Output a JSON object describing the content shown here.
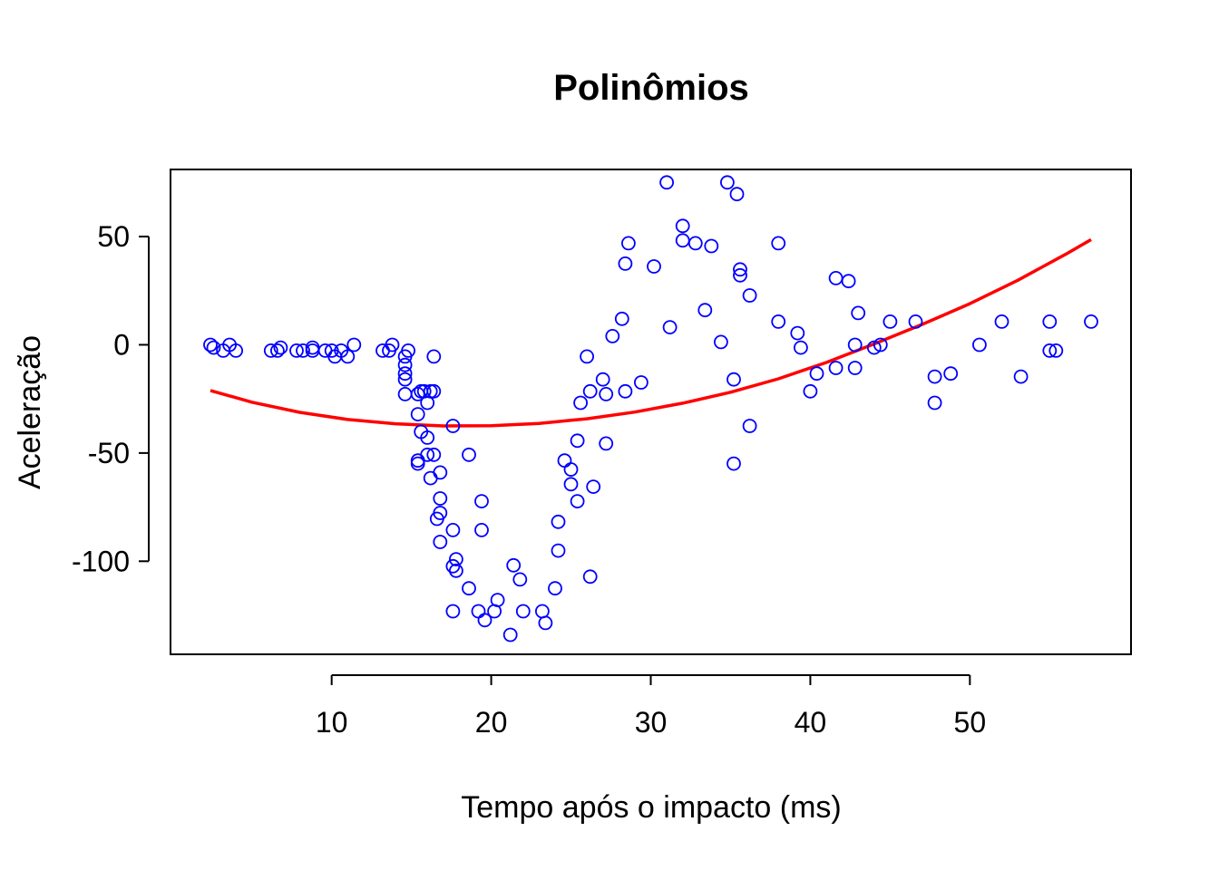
{
  "chart_data": {
    "type": "scatter",
    "title": "Polinômios",
    "xlabel": "Tempo após o impacto (ms)",
    "ylabel": "Aceleração",
    "xlim": [
      -0.1,
      60.1
    ],
    "ylim": [
      -143,
      81
    ],
    "x_ticks": [
      10,
      20,
      30,
      40,
      50
    ],
    "y_ticks": [
      -100,
      -50,
      0,
      50
    ],
    "grid": false,
    "legend": "none",
    "colors": {
      "points": "#0000ff",
      "fit": "#ff0000",
      "frame": "#000000"
    },
    "series": [
      {
        "type": "scatter",
        "marker": "open-circle",
        "x": [
          2.4,
          2.6,
          3.2,
          3.6,
          4.0,
          6.2,
          6.6,
          6.8,
          7.8,
          8.2,
          8.8,
          8.8,
          9.6,
          10.0,
          10.2,
          10.6,
          11.0,
          11.4,
          13.2,
          13.6,
          13.8,
          14.6,
          14.6,
          14.6,
          14.6,
          14.6,
          14.8,
          15.4,
          15.4,
          15.4,
          15.4,
          15.6,
          15.6,
          15.8,
          16.0,
          16.0,
          16.0,
          16.2,
          16.2,
          16.4,
          16.4,
          16.4,
          16.6,
          16.8,
          16.8,
          16.8,
          16.8,
          17.6,
          17.6,
          17.6,
          17.6,
          17.8,
          17.8,
          18.6,
          18.6,
          19.2,
          19.4,
          19.4,
          19.6,
          20.2,
          20.4,
          21.2,
          21.4,
          21.8,
          22.0,
          23.2,
          23.4,
          24.0,
          24.2,
          24.2,
          24.6,
          25.0,
          25.0,
          25.4,
          25.4,
          25.6,
          26.0,
          26.2,
          26.2,
          26.4,
          27.0,
          27.2,
          27.2,
          27.6,
          28.2,
          28.4,
          28.4,
          28.6,
          29.4,
          30.2,
          31.0,
          31.2,
          32.0,
          32.0,
          32.8,
          33.4,
          33.8,
          34.4,
          34.8,
          35.2,
          35.2,
          35.4,
          35.6,
          35.6,
          36.2,
          36.2,
          38.0,
          38.0,
          39.2,
          39.4,
          40.0,
          40.4,
          41.6,
          41.6,
          42.4,
          42.8,
          42.8,
          43.0,
          44.0,
          44.4,
          45.0,
          46.6,
          47.8,
          47.8,
          48.8,
          50.6,
          52.0,
          53.2,
          55.0,
          55.0,
          55.4,
          57.6
        ],
        "y": [
          0.0,
          -1.3,
          -2.7,
          0.0,
          -2.7,
          -2.7,
          -2.7,
          -1.3,
          -2.7,
          -2.7,
          -1.3,
          -2.7,
          -2.7,
          -2.7,
          -5.4,
          -2.7,
          -5.4,
          0.0,
          -2.7,
          -2.7,
          0.0,
          -5.4,
          -9.3,
          -13.3,
          -16.0,
          -22.8,
          -2.7,
          -22.8,
          -32.1,
          -53.5,
          -54.9,
          -40.2,
          -21.5,
          -21.5,
          -50.8,
          -42.9,
          -26.8,
          -21.5,
          -61.6,
          -50.8,
          -5.4,
          -21.5,
          -80.4,
          -59.0,
          -71.0,
          -91.1,
          -77.7,
          -37.5,
          -85.6,
          -102.3,
          -123.1,
          -99.1,
          -104.4,
          -112.5,
          -50.8,
          -123.1,
          -85.6,
          -72.3,
          -127.2,
          -123.1,
          -117.9,
          -134.0,
          -101.9,
          -108.4,
          -123.1,
          -123.1,
          -128.5,
          -112.5,
          -95.1,
          -81.8,
          -53.5,
          -64.4,
          -57.6,
          -72.3,
          -44.3,
          -26.8,
          -5.4,
          -107.1,
          -21.5,
          -65.6,
          -16.0,
          -22.8,
          -45.6,
          4.0,
          12.0,
          -21.5,
          37.5,
          46.9,
          -17.4,
          36.2,
          75.0,
          8.1,
          54.9,
          48.2,
          46.9,
          16.0,
          45.6,
          1.3,
          75.0,
          -16.0,
          -54.9,
          69.6,
          34.8,
          32.1,
          -37.5,
          22.8,
          46.9,
          10.7,
          5.4,
          -1.3,
          -21.5,
          -13.3,
          30.8,
          -10.7,
          29.4,
          0.0,
          -10.7,
          14.7,
          -1.3,
          0.0,
          10.7,
          10.7,
          -14.7,
          -26.8,
          -13.3,
          0.0,
          10.7,
          -14.7,
          10.7,
          -2.7,
          -2.7,
          10.7
        ]
      },
      {
        "type": "line",
        "x": [
          2.4,
          5.0,
          8.0,
          11.0,
          14.0,
          17.0,
          20.0,
          23.0,
          26.0,
          29.0,
          32.0,
          35.0,
          38.0,
          41.0,
          44.0,
          47.0,
          50.0,
          53.0,
          56.0,
          57.6
        ],
        "y": [
          -21.1,
          -26.5,
          -31.2,
          -34.5,
          -36.5,
          -37.5,
          -37.4,
          -36.3,
          -34.2,
          -31.1,
          -27.0,
          -21.9,
          -15.7,
          -8.2,
          0.4,
          9.4,
          19.0,
          29.8,
          41.8,
          48.6
        ]
      }
    ]
  }
}
